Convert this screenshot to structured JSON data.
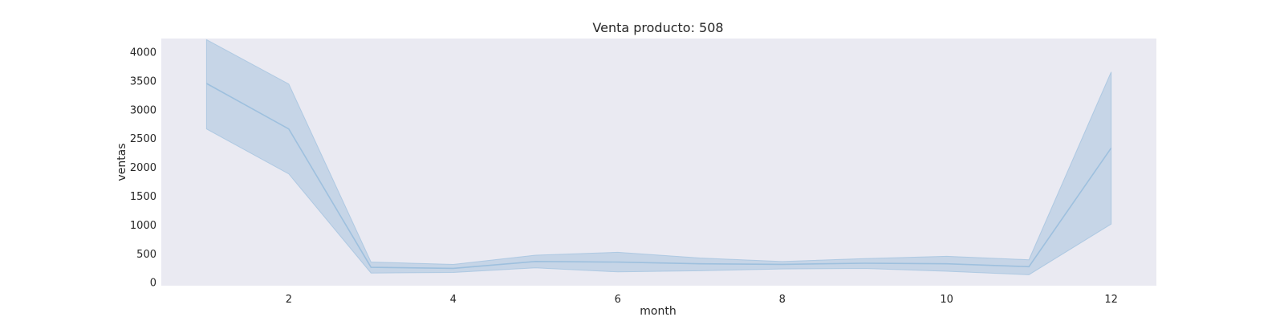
{
  "chart_data": {
    "type": "line",
    "title": "Venta producto: 508",
    "xlabel": "month",
    "ylabel": "ventas",
    "xlim": [
      0.45,
      12.55
    ],
    "ylim": [
      -60,
      4230
    ],
    "x_ticks": [
      2,
      4,
      6,
      8,
      10,
      12
    ],
    "y_ticks": [
      0,
      500,
      1000,
      1500,
      2000,
      2500,
      3000,
      3500,
      4000
    ],
    "grid": false,
    "legend": "none",
    "series": [
      {
        "x": [
          1,
          2,
          3,
          4,
          5,
          6,
          7,
          8,
          9,
          10,
          11,
          12
        ],
        "values": [
          3450,
          2660,
          260,
          240,
          360,
          350,
          320,
          310,
          330,
          320,
          270,
          2330
        ],
        "ci_lower": [
          2660,
          1880,
          160,
          170,
          250,
          180,
          200,
          230,
          240,
          190,
          130,
          1010
        ],
        "ci_upper": [
          4210,
          3440,
          350,
          310,
          470,
          520,
          420,
          360,
          410,
          450,
          390,
          3650
        ]
      }
    ],
    "colors": {
      "background": "#eaeaf2",
      "line": "#9ec0de",
      "band": "#a7c3de",
      "text": "#262626"
    }
  }
}
